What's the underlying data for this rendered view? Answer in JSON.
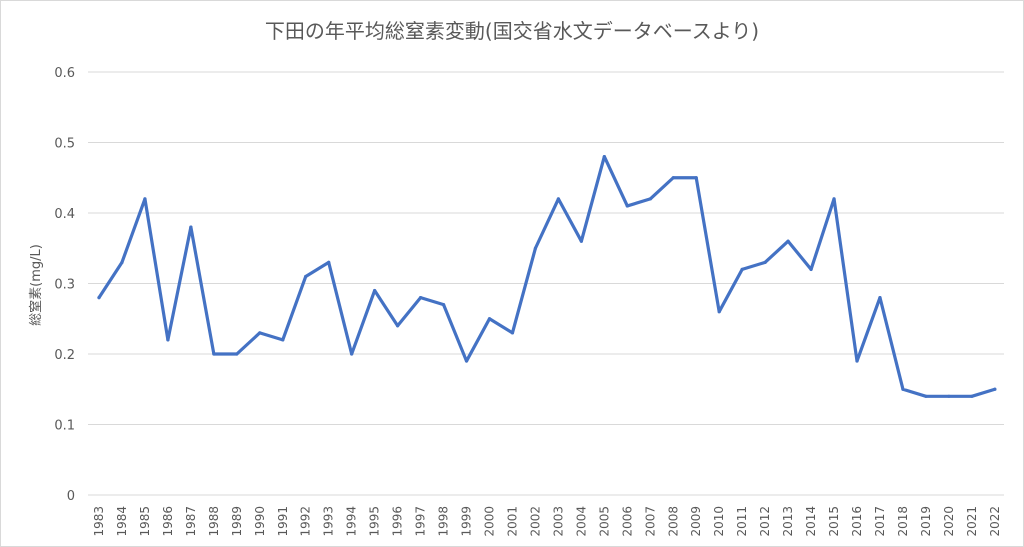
{
  "chart_data": {
    "type": "line",
    "title": "下田の年平均総窒素変動(国交省水文データベースより)",
    "xlabel": "",
    "ylabel": "総窒素(mg/L)",
    "ylim": [
      0,
      0.6
    ],
    "yticks": [
      "0",
      "0.1",
      "0.2",
      "0.3",
      "0.4",
      "0.5",
      "0.6"
    ],
    "grid": true,
    "legend": "none",
    "series_color": "#4472c4",
    "categories": [
      "1983",
      "1984",
      "1985",
      "1986",
      "1987",
      "1988",
      "1989",
      "1990",
      "1991",
      "1992",
      "1993",
      "1994",
      "1995",
      "1996",
      "1997",
      "1998",
      "1999",
      "2000",
      "2001",
      "2002",
      "2003",
      "2004",
      "2005",
      "2006",
      "2007",
      "2008",
      "2009",
      "2010",
      "2011",
      "2012",
      "2013",
      "2014",
      "2015",
      "2016",
      "2017",
      "2018",
      "2019",
      "2020",
      "2021",
      "2022"
    ],
    "series": [
      {
        "values": [
          0.28,
          0.33,
          0.42,
          0.22,
          0.38,
          0.2,
          0.2,
          0.23,
          0.22,
          0.31,
          0.33,
          0.2,
          0.29,
          0.24,
          0.28,
          0.27,
          0.19,
          0.25,
          0.23,
          0.35,
          0.42,
          0.36,
          0.48,
          0.41,
          0.42,
          0.45,
          0.45,
          0.26,
          0.32,
          0.33,
          0.36,
          0.32,
          0.42,
          0.19,
          0.28,
          0.15,
          0.14,
          0.14,
          0.14,
          0.15
        ]
      }
    ]
  }
}
